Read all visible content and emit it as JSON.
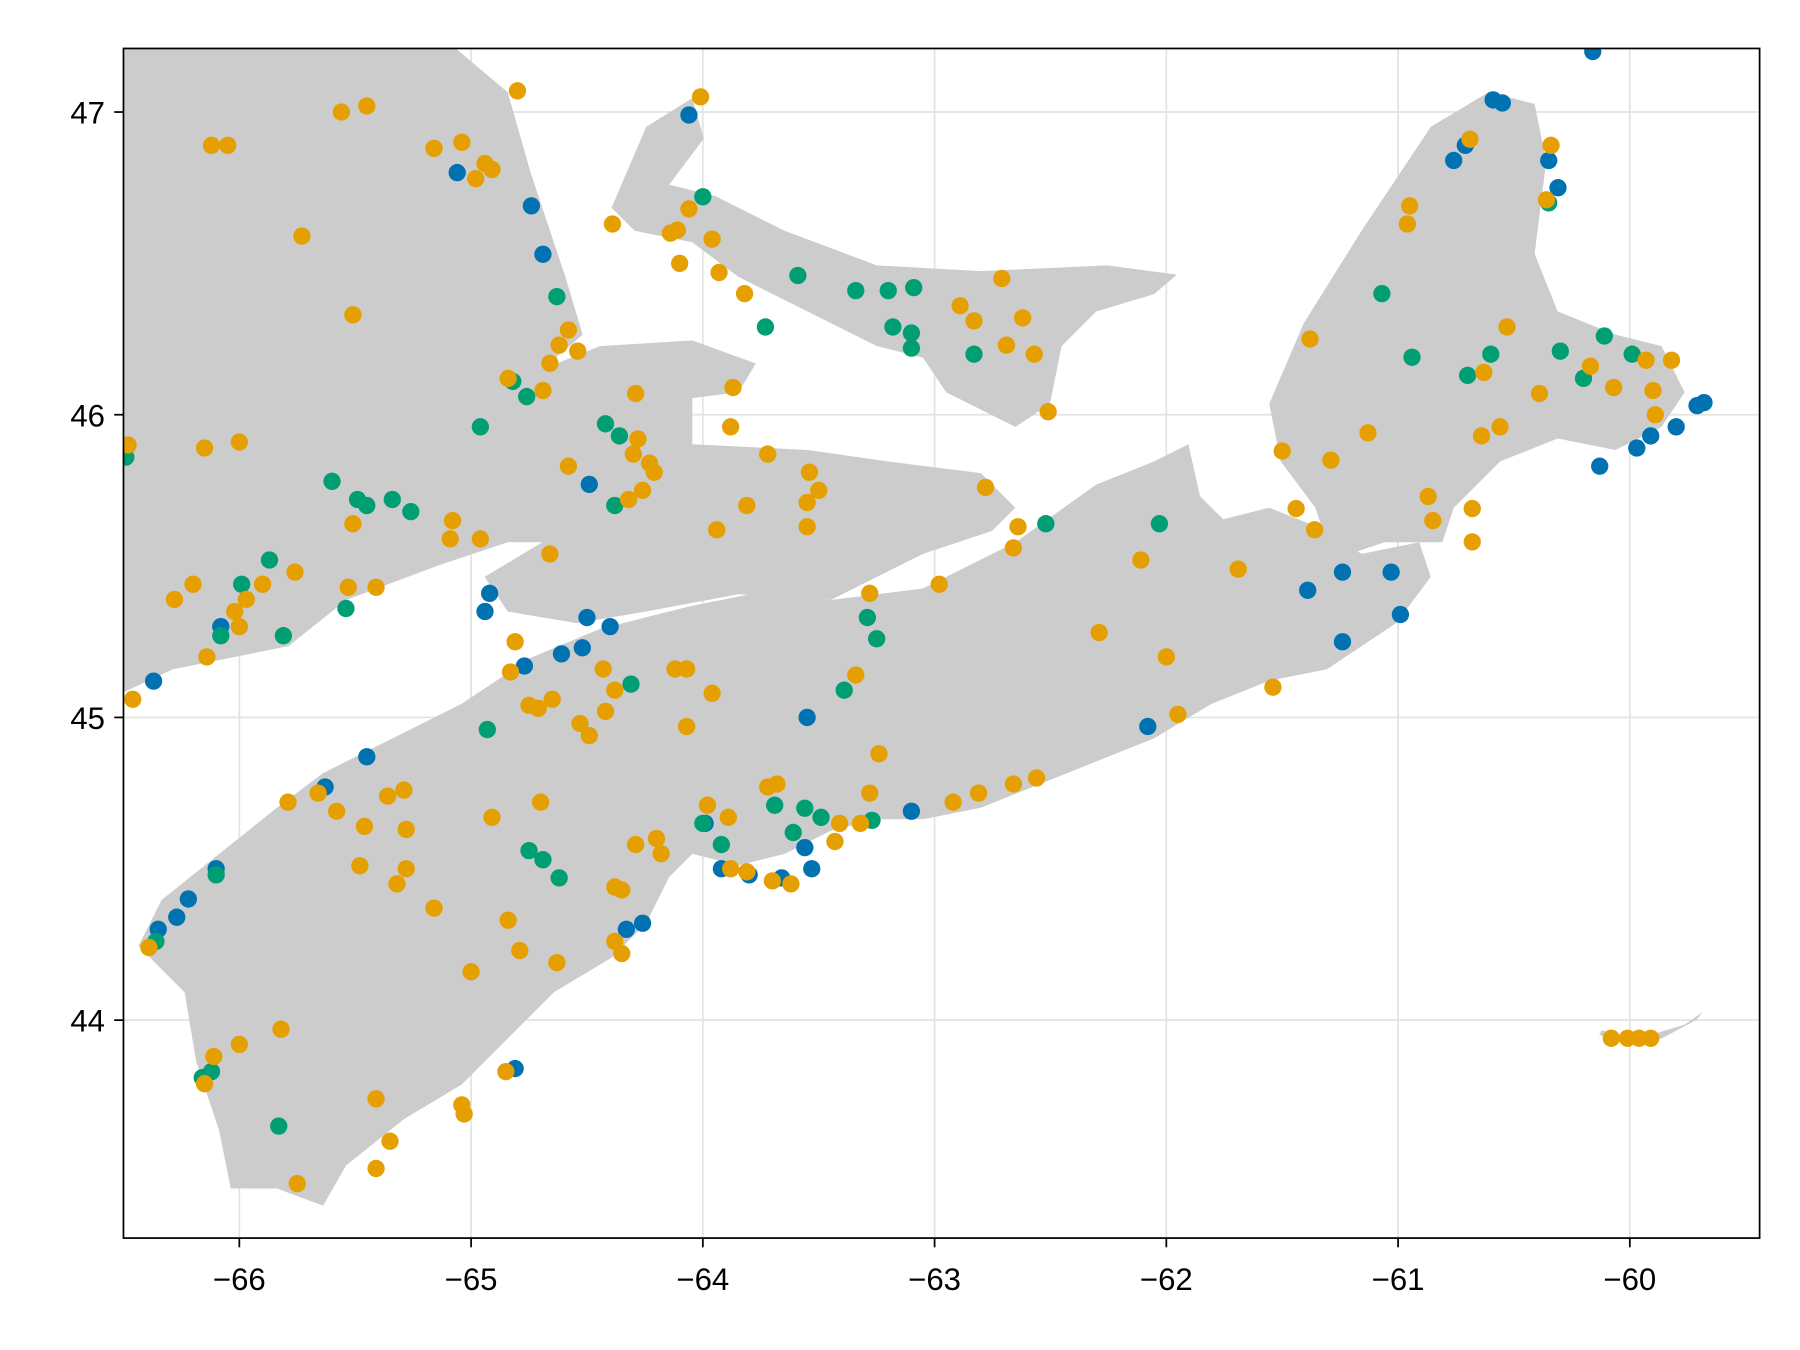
{
  "chart_data": {
    "type": "scatter",
    "xlim": [
      -66.5,
      -59.44
    ],
    "ylim": [
      43.28,
      47.21
    ],
    "xticks": [
      {
        "value": -66,
        "label": "−66"
      },
      {
        "value": -65,
        "label": "−65"
      },
      {
        "value": -64,
        "label": "−64"
      },
      {
        "value": -63,
        "label": "−63"
      },
      {
        "value": -62,
        "label": "−62"
      },
      {
        "value": -61,
        "label": "−61"
      },
      {
        "value": -60,
        "label": "−60"
      }
    ],
    "yticks": [
      44,
      45,
      46,
      47
    ],
    "grid": true,
    "series": [
      {
        "color": "#0072b2",
        "x": [
          -60.16,
          -64.06,
          -65.06,
          -64.74,
          -64.69,
          -60.59,
          -60.55,
          -60.76,
          -60.71,
          -60.35,
          -60.31,
          -59.68,
          -59.71,
          -60.13,
          -59.97,
          -59.91,
          -59.8,
          -64.49,
          -64.92,
          -64.94,
          -64.5,
          -64.4,
          -64.61,
          -64.77,
          -64.52,
          -66.37,
          -66.08,
          -63.55,
          -65.45,
          -65.63,
          -66.1,
          -66.22,
          -66.27,
          -66.35,
          -64.33,
          -64.26,
          -64.81,
          -62.08,
          -63.1,
          -61.24,
          -61.39,
          -61.24,
          -61.03,
          -60.99,
          -63.92,
          -63.8,
          -63.66,
          -63.53,
          -63.56,
          -63.99
        ],
        "values": [
          47.2,
          46.99,
          46.8,
          46.69,
          46.53,
          47.04,
          47.03,
          46.84,
          46.89,
          46.84,
          46.75,
          46.04,
          46.03,
          45.83,
          45.89,
          45.93,
          45.96,
          45.77,
          45.41,
          45.35,
          45.33,
          45.3,
          45.21,
          45.17,
          45.23,
          45.12,
          45.3,
          45.0,
          44.87,
          44.77,
          44.5,
          44.4,
          44.34,
          44.3,
          44.3,
          44.32,
          43.84,
          44.97,
          44.69,
          45.25,
          45.42,
          45.48,
          45.48,
          45.34,
          44.5,
          44.48,
          44.47,
          44.5,
          44.57,
          44.65
        ]
      },
      {
        "color": "#009e73",
        "x": [
          -66.49,
          -64.96,
          -64.63,
          -64.82,
          -64.76,
          -64.0,
          -63.59,
          -63.34,
          -63.2,
          -63.09,
          -63.73,
          -63.18,
          -63.1,
          -63.1,
          -62.83,
          -64.42,
          -64.36,
          -64.38,
          -65.6,
          -65.49,
          -65.45,
          -65.34,
          -65.26,
          -65.87,
          -65.99,
          -66.08,
          -65.81,
          -65.54,
          -64.31,
          -63.39,
          -63.29,
          -63.25,
          -64.93,
          -62.03,
          -62.52,
          -61.07,
          -60.94,
          -60.7,
          -60.6,
          -60.35,
          -60.3,
          -60.11,
          -60.2,
          -59.99,
          -64.75,
          -64.69,
          -64.62,
          -64.0,
          -63.92,
          -63.69,
          -63.56,
          -63.49,
          -63.61,
          -63.27,
          -66.1,
          -66.36,
          -66.12,
          -66.16,
          -65.83
        ],
        "values": [
          45.86,
          45.96,
          46.39,
          46.11,
          46.06,
          46.72,
          46.46,
          46.41,
          46.41,
          46.42,
          46.29,
          46.29,
          46.27,
          46.22,
          46.2,
          45.97,
          45.93,
          45.7,
          45.78,
          45.72,
          45.7,
          45.72,
          45.68,
          45.52,
          45.44,
          45.27,
          45.27,
          45.36,
          45.11,
          45.09,
          45.33,
          45.26,
          44.96,
          45.64,
          45.64,
          46.4,
          46.19,
          46.13,
          46.2,
          46.7,
          46.21,
          46.26,
          46.12,
          46.2,
          44.56,
          44.53,
          44.47,
          44.65,
          44.58,
          44.71,
          44.7,
          44.67,
          44.62,
          44.66,
          44.48,
          44.26,
          43.83,
          43.81,
          43.65
        ]
      },
      {
        "color": "#e69f00",
        "x": [
          -66.48,
          -66.46,
          -65.56,
          -65.45,
          -64.8,
          -64.01,
          -66.12,
          -66.05,
          -65.16,
          -65.04,
          -64.94,
          -64.98,
          -64.91,
          -65.73,
          -65.51,
          -64.39,
          -64.06,
          -64.11,
          -64.14,
          -63.96,
          -63.93,
          -64.1,
          -63.82,
          -62.71,
          -62.89,
          -62.83,
          -62.62,
          -62.69,
          -62.57,
          -62.51,
          -64.58,
          -64.62,
          -64.54,
          -64.66,
          -64.84,
          -64.69,
          -64.29,
          -63.87,
          -63.88,
          -64.3,
          -64.28,
          -64.23,
          -64.21,
          -64.26,
          -64.32,
          -64.58,
          -63.72,
          -63.54,
          -63.5,
          -63.55,
          -63.55,
          -63.81,
          -63.94,
          -66.15,
          -66.0,
          -65.08,
          -65.09,
          -64.96,
          -65.51,
          -64.66,
          -65.76,
          -65.9,
          -65.97,
          -66.02,
          -66.0,
          -66.14,
          -66.28,
          -66.2,
          -65.53,
          -65.41,
          -64.81,
          -64.83,
          -64.43,
          -64.38,
          -64.75,
          -64.71,
          -64.65,
          -64.53,
          -64.49,
          -64.42,
          -64.12,
          -64.07,
          -63.96,
          -64.07,
          -63.28,
          -63.34,
          -63.24,
          -62.98,
          -62.78,
          -62.64,
          -62.66,
          -62.29,
          -62.0,
          -62.11,
          -61.69,
          -61.95,
          -61.54,
          -61.36,
          -61.44,
          -61.5,
          -61.29,
          -61.13,
          -61.38,
          -60.95,
          -60.96,
          -60.69,
          -60.34,
          -60.36,
          -60.53,
          -60.63,
          -60.39,
          -60.17,
          -60.07,
          -59.93,
          -59.82,
          -59.9,
          -59.89,
          -60.64,
          -60.56,
          -60.87,
          -60.85,
          -60.68,
          -60.68,
          -60.08,
          -60.01,
          -59.96,
          -59.91,
          -62.92,
          -62.81,
          -62.66,
          -62.56,
          -63.28,
          -63.32,
          -63.41,
          -63.43,
          -63.72,
          -63.68,
          -63.89,
          -63.98,
          -64.2,
          -64.18,
          -64.29,
          -64.38,
          -64.35,
          -64.38,
          -64.35,
          -63.88,
          -63.81,
          -63.7,
          -63.62,
          -65.66,
          -65.58,
          -65.36,
          -65.29,
          -65.46,
          -65.28,
          -65.48,
          -65.28,
          -65.32,
          -65.16,
          -64.91,
          -64.7,
          -64.84,
          -64.79,
          -64.63,
          -65.0,
          -65.82,
          -66.0,
          -66.11,
          -66.15,
          -66.39,
          -65.41,
          -65.35,
          -65.41,
          -65.75,
          -65.04,
          -65.03,
          -64.85,
          -65.79
        ],
        "values": [
          45.9,
          45.06,
          47.0,
          47.02,
          47.07,
          47.05,
          46.89,
          46.89,
          46.88,
          46.9,
          46.83,
          46.78,
          46.81,
          46.59,
          46.33,
          46.63,
          46.68,
          46.61,
          46.6,
          46.58,
          46.47,
          46.5,
          46.4,
          46.45,
          46.36,
          46.31,
          46.32,
          46.23,
          46.2,
          46.01,
          46.28,
          46.23,
          46.21,
          46.17,
          46.12,
          46.08,
          46.07,
          46.09,
          45.96,
          45.87,
          45.92,
          45.84,
          45.81,
          45.75,
          45.72,
          45.83,
          45.87,
          45.81,
          45.75,
          45.71,
          45.63,
          45.7,
          45.62,
          45.89,
          45.91,
          45.65,
          45.59,
          45.59,
          45.64,
          45.54,
          45.48,
          45.44,
          45.39,
          45.35,
          45.3,
          45.2,
          45.39,
          45.44,
          45.43,
          45.43,
          45.25,
          45.15,
          45.16,
          45.09,
          45.04,
          45.03,
          45.06,
          44.98,
          44.94,
          45.02,
          45.16,
          45.16,
          45.08,
          44.97,
          45.41,
          45.14,
          44.88,
          45.44,
          45.76,
          45.63,
          45.56,
          45.28,
          45.2,
          45.52,
          45.49,
          45.01,
          45.1,
          45.62,
          45.69,
          45.88,
          45.85,
          45.94,
          46.25,
          46.69,
          46.63,
          46.91,
          46.89,
          46.71,
          46.29,
          46.14,
          46.07,
          46.16,
          46.09,
          46.18,
          46.18,
          46.08,
          46.0,
          45.93,
          45.96,
          45.73,
          45.65,
          45.69,
          45.58,
          43.94,
          43.94,
          43.94,
          43.94,
          44.72,
          44.75,
          44.78,
          44.8,
          44.75,
          44.65,
          44.65,
          44.59,
          44.77,
          44.78,
          44.67,
          44.71,
          44.6,
          44.55,
          44.58,
          44.44,
          44.43,
          44.26,
          44.22,
          44.5,
          44.49,
          44.46,
          44.45,
          44.75,
          44.69,
          44.74,
          44.76,
          44.64,
          44.63,
          44.51,
          44.5,
          44.45,
          44.37,
          44.67,
          44.72,
          44.33,
          44.23,
          44.19,
          44.16,
          43.97,
          43.92,
          43.88,
          43.79,
          44.24,
          43.74,
          43.6,
          43.51,
          43.46,
          43.72,
          43.69,
          43.83,
          44.72
        ]
      }
    ]
  }
}
